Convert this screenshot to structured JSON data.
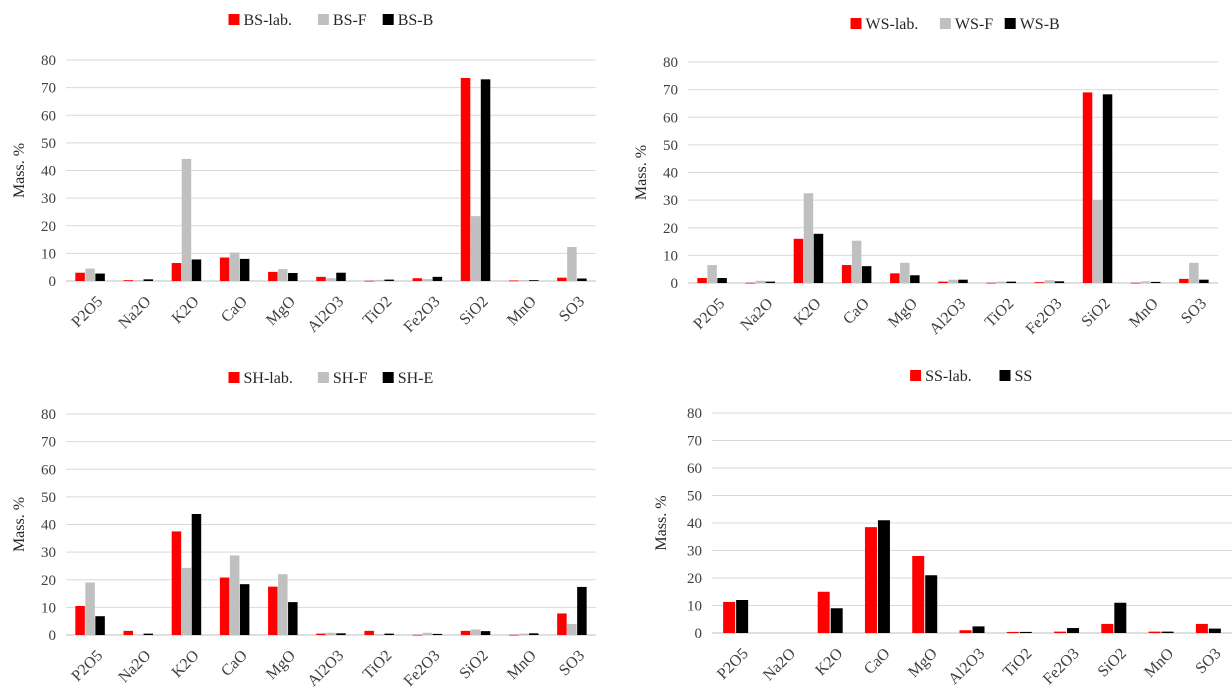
{
  "chart_data": [
    {
      "type": "bar",
      "categories": [
        "P2O5",
        "Na2O",
        "K2O",
        "CaO",
        "MgO",
        "Al2O3",
        "TiO2",
        "Fe2O3",
        "SiO2",
        "MnO",
        "SO3"
      ],
      "series": [
        {
          "name": "BS-lab.",
          "color": "#ff0000",
          "values": [
            3.0,
            0.3,
            6.5,
            8.5,
            3.3,
            1.5,
            0.1,
            1.0,
            73.5,
            0.2,
            1.2
          ]
        },
        {
          "name": "BS-F",
          "color": "#c0c0c0",
          "values": [
            4.5,
            0.3,
            44.2,
            10.3,
            4.3,
            1.0,
            0.4,
            0.7,
            23.5,
            0.3,
            12.3
          ]
        },
        {
          "name": "BS-B",
          "color": "#000000",
          "values": [
            2.7,
            0.6,
            7.8,
            8.0,
            2.9,
            3.0,
            0.5,
            1.5,
            73.0,
            0.3,
            0.9
          ]
        }
      ],
      "ylabel": "Mass. %",
      "ylim": [
        0,
        80
      ],
      "yticks": [
        0,
        10,
        20,
        30,
        40,
        50,
        60,
        70,
        80
      ],
      "grid": true,
      "legend": "top"
    },
    {
      "type": "bar",
      "categories": [
        "P2O5",
        "Na2O",
        "K2O",
        "CaO",
        "MgO",
        "Al2O3",
        "TiO2",
        "Fe2O3",
        "SiO2",
        "MnO",
        "SO3"
      ],
      "series": [
        {
          "name": "WS-lab.",
          "color": "#ff0000",
          "values": [
            1.8,
            0.1,
            16.0,
            6.5,
            3.5,
            0.5,
            0.1,
            0.3,
            69.0,
            0.1,
            1.5
          ]
        },
        {
          "name": "WS-F",
          "color": "#c0c0c0",
          "values": [
            6.5,
            0.8,
            32.5,
            15.3,
            7.3,
            1.2,
            0.5,
            1.0,
            30.0,
            0.6,
            7.3
          ]
        },
        {
          "name": "WS-B",
          "color": "#000000",
          "values": [
            1.8,
            0.5,
            17.8,
            6.1,
            2.8,
            1.2,
            0.5,
            0.6,
            68.3,
            0.4,
            1.2
          ]
        }
      ],
      "ylabel": "Mass. %",
      "ylim": [
        0,
        80
      ],
      "yticks": [
        0,
        10,
        20,
        30,
        40,
        50,
        60,
        70,
        80
      ],
      "grid": true,
      "legend": "top"
    },
    {
      "type": "bar",
      "categories": [
        "P2O5",
        "Na2O",
        "K2O",
        "CaO",
        "MgO",
        "Al2O3",
        "TiO2",
        "Fe2O3",
        "SiO2",
        "MnO",
        "SO3"
      ],
      "series": [
        {
          "name": "SH-lab.",
          "color": "#ff0000",
          "values": [
            10.5,
            1.5,
            37.5,
            20.8,
            17.5,
            0.5,
            1.5,
            0.1,
            1.5,
            0.1,
            7.8
          ]
        },
        {
          "name": "SH-F",
          "color": "#c0c0c0",
          "values": [
            19.0,
            0.2,
            24.3,
            28.8,
            22.0,
            0.8,
            0.3,
            0.8,
            2.0,
            0.5,
            4.0
          ]
        },
        {
          "name": "SH-E",
          "color": "#000000",
          "values": [
            6.8,
            0.5,
            43.8,
            18.4,
            11.9,
            0.6,
            0.5,
            0.4,
            1.4,
            0.6,
            17.4
          ]
        }
      ],
      "ylabel": "Mass. %",
      "ylim": [
        0,
        80
      ],
      "yticks": [
        0,
        10,
        20,
        30,
        40,
        50,
        60,
        70,
        80
      ],
      "grid": true,
      "legend": "top"
    },
    {
      "type": "bar",
      "categories": [
        "P2O5",
        "Na2O",
        "K2O",
        "CaO",
        "MgO",
        "Al2O3",
        "TiO2",
        "Fe2O3",
        "SiO2",
        "MnO",
        "SO3"
      ],
      "series": [
        {
          "name": "SS-lab.",
          "color": "#ff0000",
          "values": [
            11.3,
            0.0,
            15.0,
            38.5,
            28.0,
            1.0,
            0.4,
            0.5,
            3.3,
            0.5,
            3.3
          ]
        },
        {
          "name": "SS",
          "color": "#000000",
          "values": [
            12.0,
            0.0,
            9.0,
            41.0,
            21.0,
            2.4,
            0.4,
            1.8,
            11.0,
            0.5,
            1.6
          ]
        }
      ],
      "ylabel": "Mass. %",
      "ylim": [
        0,
        80
      ],
      "yticks": [
        0,
        10,
        20,
        30,
        40,
        50,
        60,
        70,
        80
      ],
      "grid": true,
      "legend": "top"
    }
  ]
}
